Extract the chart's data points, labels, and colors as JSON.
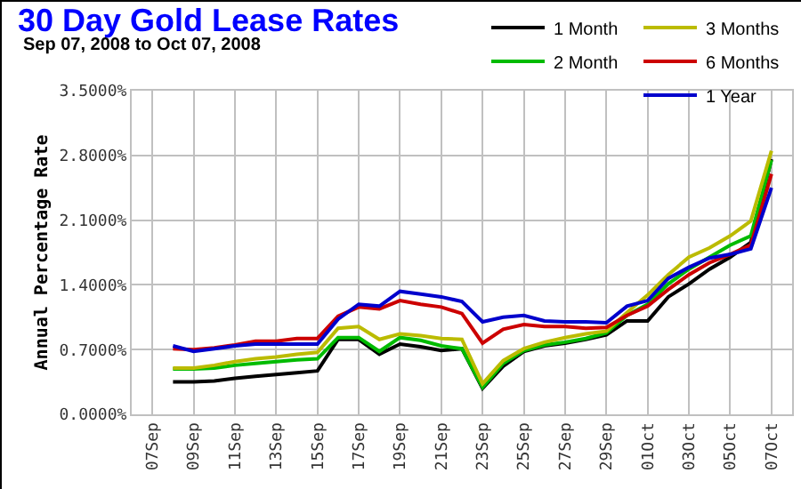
{
  "chart_data": {
    "type": "line",
    "title": "30 Day Gold Lease Rates",
    "subtitle": "Sep 07, 2008 to Oct 07, 2008",
    "ylabel": "Annual Percentage Rate",
    "x": [
      "2008-09-08",
      "2008-09-09",
      "2008-09-10",
      "2008-09-11",
      "2008-09-12",
      "2008-09-13",
      "2008-09-14",
      "2008-09-15",
      "2008-09-16",
      "2008-09-17",
      "2008-09-18",
      "2008-09-19",
      "2008-09-20",
      "2008-09-21",
      "2008-09-22",
      "2008-09-23",
      "2008-09-24",
      "2008-09-25",
      "2008-09-26",
      "2008-09-27",
      "2008-09-28",
      "2008-09-29",
      "2008-09-30",
      "2008-10-01",
      "2008-10-02",
      "2008-10-03",
      "2008-10-04",
      "2008-10-05",
      "2008-10-06",
      "2008-10-07"
    ],
    "series": [
      {
        "name": "1 Month",
        "color": "#000000",
        "values": [
          0.35,
          0.35,
          0.36,
          0.39,
          0.41,
          0.43,
          0.45,
          0.47,
          0.81,
          0.81,
          0.65,
          0.76,
          0.73,
          0.69,
          0.71,
          0.28,
          0.52,
          0.68,
          0.74,
          0.77,
          0.81,
          0.86,
          1.01,
          1.01,
          1.27,
          1.41,
          1.57,
          1.7,
          1.86,
          2.76
        ]
      },
      {
        "name": "2 Month",
        "color": "#00bb00",
        "values": [
          0.49,
          0.49,
          0.5,
          0.53,
          0.55,
          0.57,
          0.59,
          0.6,
          0.83,
          0.83,
          0.68,
          0.83,
          0.8,
          0.74,
          0.71,
          0.29,
          0.55,
          0.69,
          0.75,
          0.78,
          0.82,
          0.88,
          1.07,
          1.19,
          1.41,
          1.57,
          1.7,
          1.83,
          1.93,
          2.75
        ]
      },
      {
        "name": "3 Months",
        "color": "#bbbb00",
        "values": [
          0.5,
          0.5,
          0.53,
          0.57,
          0.6,
          0.62,
          0.65,
          0.67,
          0.93,
          0.95,
          0.81,
          0.87,
          0.85,
          0.82,
          0.81,
          0.33,
          0.58,
          0.71,
          0.78,
          0.83,
          0.87,
          0.9,
          1.1,
          1.29,
          1.51,
          1.7,
          1.8,
          1.93,
          2.09,
          2.85
        ]
      },
      {
        "name": "6 Months",
        "color": "#cc0000",
        "values": [
          0.71,
          0.7,
          0.72,
          0.75,
          0.79,
          0.79,
          0.82,
          0.82,
          1.06,
          1.16,
          1.14,
          1.23,
          1.19,
          1.16,
          1.09,
          0.77,
          0.92,
          0.97,
          0.95,
          0.95,
          0.93,
          0.94,
          1.07,
          1.17,
          1.35,
          1.51,
          1.64,
          1.73,
          1.83,
          2.6
        ]
      },
      {
        "name": "1 Year",
        "color": "#0000cc",
        "values": [
          0.74,
          0.68,
          0.71,
          0.74,
          0.76,
          0.76,
          0.76,
          0.76,
          1.03,
          1.19,
          1.17,
          1.33,
          1.3,
          1.27,
          1.22,
          1.0,
          1.05,
          1.07,
          1.01,
          1.0,
          1.0,
          0.99,
          1.17,
          1.23,
          1.47,
          1.59,
          1.69,
          1.73,
          1.79,
          2.45
        ]
      }
    ],
    "xlim": [
      "2008-09-06",
      "2008-10-08"
    ],
    "xticks": [
      {
        "value": "2008-09-07",
        "label": "07Sep"
      },
      {
        "value": "2008-09-09",
        "label": "09Sep"
      },
      {
        "value": "2008-09-11",
        "label": "11Sep"
      },
      {
        "value": "2008-09-13",
        "label": "13Sep"
      },
      {
        "value": "2008-09-15",
        "label": "15Sep"
      },
      {
        "value": "2008-09-17",
        "label": "17Sep"
      },
      {
        "value": "2008-09-19",
        "label": "19Sep"
      },
      {
        "value": "2008-09-21",
        "label": "21Sep"
      },
      {
        "value": "2008-09-23",
        "label": "23Sep"
      },
      {
        "value": "2008-09-25",
        "label": "25Sep"
      },
      {
        "value": "2008-09-27",
        "label": "27Sep"
      },
      {
        "value": "2008-09-29",
        "label": "29Sep"
      },
      {
        "value": "2008-10-01",
        "label": "01Oct"
      },
      {
        "value": "2008-10-03",
        "label": "03Oct"
      },
      {
        "value": "2008-10-05",
        "label": "05Oct"
      },
      {
        "value": "2008-10-07",
        "label": "07Oct"
      }
    ],
    "ylim": [
      0,
      3.5
    ],
    "yticks": [
      {
        "value": 0,
        "label": "0.0000%"
      },
      {
        "value": 0.7,
        "label": "0.7000%"
      },
      {
        "value": 1.4,
        "label": "1.4000%"
      },
      {
        "value": 2.1,
        "label": "2.1000%"
      },
      {
        "value": 2.8,
        "label": "2.8000%"
      },
      {
        "value": 3.5,
        "label": "3.5000%"
      }
    ],
    "grid": true,
    "legend": "top right"
  }
}
